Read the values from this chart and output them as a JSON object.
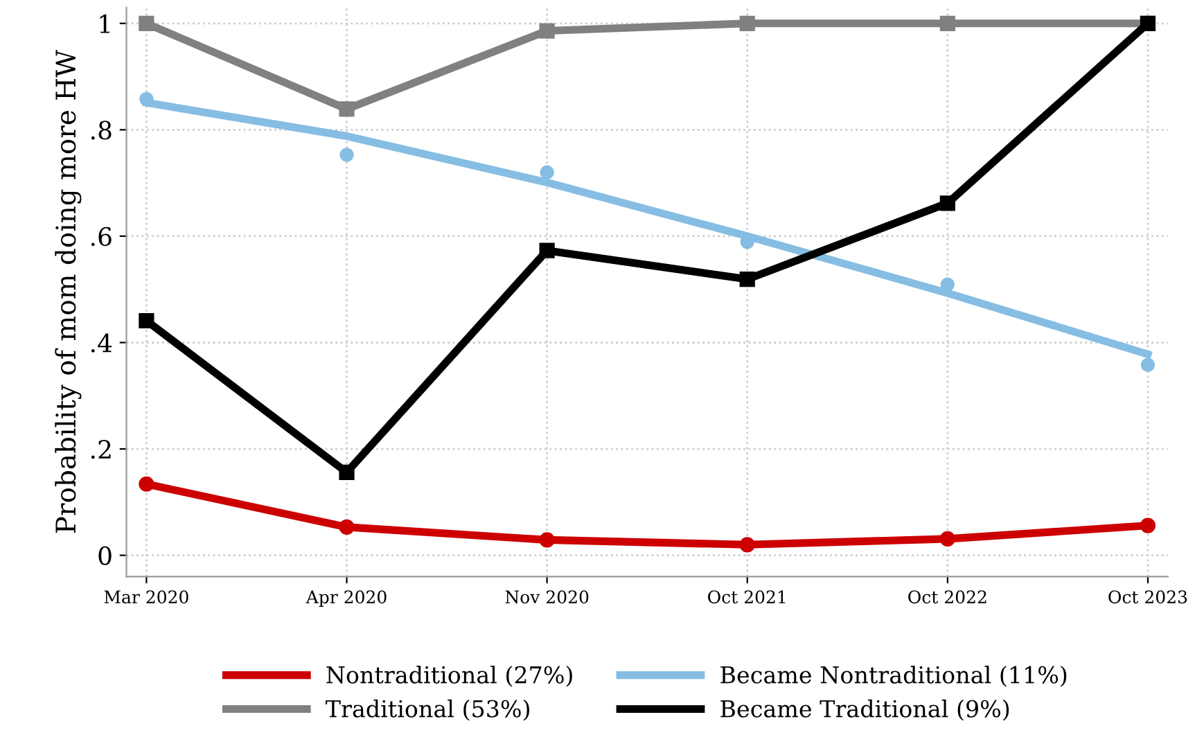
{
  "chart_data": {
    "type": "line",
    "ylabel": "Probability of mom doing more HW",
    "categories": [
      "Mar 2020",
      "Apr 2020",
      "Nov 2020",
      "Oct 2021",
      "Oct 2022",
      "Oct 2023"
    ],
    "series": [
      {
        "name": "Nontraditional (27%)",
        "color": "#cc0000",
        "marker": "circle",
        "values": [
          0.134,
          0.053,
          0.029,
          0.02,
          0.031,
          0.056
        ]
      },
      {
        "name": "Traditional (53%)",
        "color": "#808080",
        "marker": "square",
        "values": [
          1.0,
          0.839,
          0.986,
          1.0,
          1.0,
          1.0
        ]
      },
      {
        "name": "Became Nontraditional (11%)",
        "color": "#86bde3",
        "marker": "none",
        "values": [
          0.851,
          0.788,
          0.701,
          0.6,
          0.493,
          0.378
        ]
      },
      {
        "name": "Became Traditional (9%)",
        "color": "#000000",
        "marker": "square",
        "values": [
          0.441,
          0.156,
          0.573,
          0.519,
          0.662,
          1.0
        ]
      },
      {
        "type": "scatter",
        "color": "#86bde3",
        "marker": "circle",
        "values": [
          0.858,
          0.753,
          0.72,
          0.589,
          0.509,
          0.358
        ]
      }
    ],
    "ylim": [
      -0.04,
      1.03
    ],
    "yticks": [
      {
        "value": 0,
        "label": "0"
      },
      {
        "value": 0.2,
        "label": ".2"
      },
      {
        "value": 0.4,
        "label": ".4"
      },
      {
        "value": 0.6,
        "label": ".6"
      },
      {
        "value": 0.8,
        "label": ".8"
      },
      {
        "value": 1,
        "label": "1"
      }
    ],
    "grid": true,
    "legend": "bottom"
  }
}
